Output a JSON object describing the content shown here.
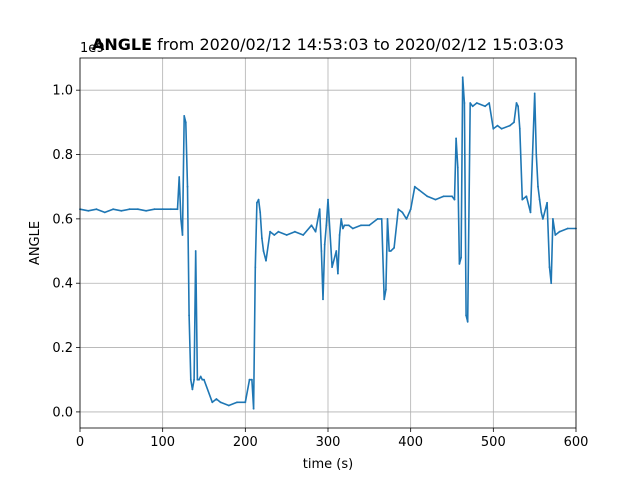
{
  "chart_data": {
    "type": "line",
    "title_bold": "ANGLE",
    "title_rest": " from 2020/02/12 14:53:03 to 2020/02/12 15:03:03",
    "xlabel": "time (s)",
    "ylabel": "ANGLE",
    "y_offset_label": "1e9",
    "xlim": [
      0,
      600
    ],
    "ylim": [
      -0.05,
      1.1
    ],
    "xticks": [
      0,
      100,
      200,
      300,
      400,
      500,
      600
    ],
    "xtick_labels": [
      "0",
      "100",
      "200",
      "300",
      "400",
      "500",
      "600"
    ],
    "yticks": [
      0.0,
      0.2,
      0.4,
      0.6,
      0.8,
      1.0
    ],
    "ytick_labels": [
      "0.0",
      "0.2",
      "0.4",
      "0.6",
      "0.8",
      "1.0"
    ],
    "grid": true,
    "line_color": "#1f77b4",
    "series": [
      {
        "x": [
          0,
          10,
          20,
          30,
          40,
          50,
          60,
          70,
          80,
          90,
          100,
          110,
          118,
          120,
          122,
          124,
          126,
          128,
          130,
          132,
          134,
          136,
          138,
          140,
          142,
          144,
          146,
          148,
          150,
          160,
          165,
          170,
          180,
          190,
          200,
          205,
          208,
          210,
          212,
          214,
          216,
          218,
          220,
          222,
          225,
          230,
          235,
          240,
          250,
          260,
          270,
          280,
          285,
          290,
          292,
          294,
          296,
          298,
          300,
          305,
          310,
          312,
          314,
          316,
          318,
          320,
          325,
          330,
          340,
          350,
          360,
          365,
          368,
          370,
          372,
          374,
          376,
          380,
          385,
          390,
          395,
          400,
          405,
          410,
          420,
          430,
          440,
          450,
          453,
          455,
          457,
          459,
          461,
          463,
          465,
          467,
          469,
          472,
          475,
          480,
          490,
          495,
          500,
          505,
          510,
          520,
          525,
          528,
          530,
          532,
          535,
          540,
          545,
          550,
          552,
          554,
          556,
          558,
          560,
          565,
          568,
          570,
          572,
          575,
          580,
          590,
          600
        ],
        "y": [
          0.63,
          0.625,
          0.63,
          0.62,
          0.63,
          0.625,
          0.63,
          0.63,
          0.625,
          0.63,
          0.63,
          0.63,
          0.63,
          0.73,
          0.6,
          0.55,
          0.92,
          0.9,
          0.7,
          0.3,
          0.1,
          0.07,
          0.1,
          0.5,
          0.1,
          0.1,
          0.11,
          0.1,
          0.1,
          0.03,
          0.04,
          0.03,
          0.02,
          0.03,
          0.03,
          0.1,
          0.1,
          0.01,
          0.45,
          0.65,
          0.66,
          0.62,
          0.54,
          0.5,
          0.47,
          0.56,
          0.55,
          0.56,
          0.55,
          0.56,
          0.55,
          0.58,
          0.56,
          0.63,
          0.5,
          0.35,
          0.52,
          0.58,
          0.66,
          0.45,
          0.5,
          0.43,
          0.55,
          0.6,
          0.57,
          0.58,
          0.58,
          0.57,
          0.58,
          0.58,
          0.6,
          0.6,
          0.35,
          0.38,
          0.6,
          0.5,
          0.5,
          0.51,
          0.63,
          0.62,
          0.6,
          0.63,
          0.7,
          0.69,
          0.67,
          0.66,
          0.67,
          0.67,
          0.66,
          0.85,
          0.76,
          0.46,
          0.48,
          1.04,
          0.96,
          0.3,
          0.28,
          0.96,
          0.95,
          0.96,
          0.95,
          0.96,
          0.88,
          0.89,
          0.88,
          0.89,
          0.9,
          0.96,
          0.95,
          0.88,
          0.66,
          0.67,
          0.62,
          0.99,
          0.8,
          0.7,
          0.66,
          0.62,
          0.6,
          0.65,
          0.45,
          0.4,
          0.6,
          0.55,
          0.56,
          0.57,
          0.57
        ]
      }
    ]
  }
}
